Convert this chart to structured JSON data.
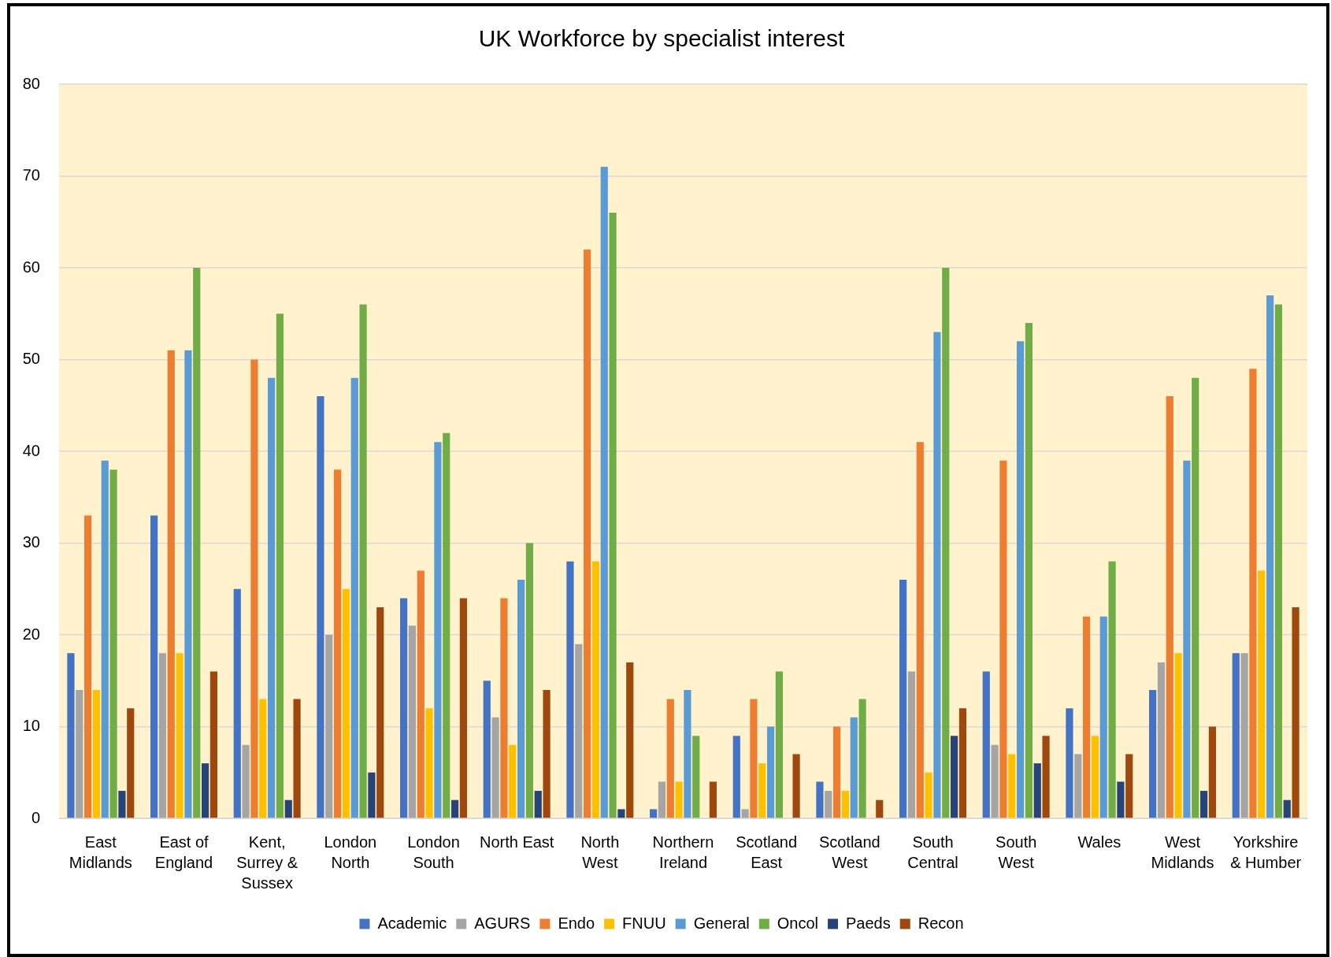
{
  "chart_data": {
    "type": "bar",
    "title": "UK Workforce by specialist interest",
    "categories": [
      "East Midlands",
      "East of England",
      "Kent, Surrey & Sussex",
      "London North",
      "London South",
      "North East",
      "North West",
      "Northern Ireland",
      "Scotland East",
      "Scotland West",
      "South Central",
      "South West",
      "Wales",
      "West Midlands",
      "Yorkshire & Humber"
    ],
    "series": [
      {
        "name": "Academic",
        "color": "#4472c4",
        "values": [
          18,
          33,
          25,
          46,
          24,
          15,
          28,
          1,
          9,
          4,
          26,
          16,
          12,
          14,
          18
        ]
      },
      {
        "name": "AGURS",
        "color": "#a5a5a5",
        "values": [
          14,
          18,
          8,
          20,
          21,
          11,
          19,
          4,
          1,
          3,
          16,
          8,
          7,
          17,
          18
        ]
      },
      {
        "name": "Endo",
        "color": "#ed7d31",
        "values": [
          33,
          51,
          50,
          38,
          27,
          24,
          62,
          13,
          13,
          10,
          41,
          39,
          22,
          46,
          49
        ]
      },
      {
        "name": "FNUU",
        "color": "#ffc000",
        "values": [
          14,
          18,
          13,
          25,
          12,
          8,
          28,
          4,
          6,
          3,
          5,
          7,
          9,
          18,
          27
        ]
      },
      {
        "name": "General",
        "color": "#5b9bd5",
        "values": [
          39,
          51,
          48,
          48,
          41,
          26,
          71,
          14,
          10,
          11,
          53,
          52,
          22,
          39,
          57
        ]
      },
      {
        "name": "Oncol",
        "color": "#70ad47",
        "values": [
          38,
          60,
          55,
          56,
          42,
          30,
          66,
          9,
          16,
          13,
          60,
          54,
          28,
          48,
          56
        ]
      },
      {
        "name": "Paeds",
        "color": "#264478",
        "values": [
          3,
          6,
          2,
          5,
          2,
          3,
          1,
          0,
          0,
          0,
          9,
          6,
          4,
          3,
          2
        ]
      },
      {
        "name": "Recon",
        "color": "#9e480e",
        "values": [
          12,
          16,
          13,
          23,
          24,
          14,
          17,
          4,
          7,
          2,
          12,
          9,
          7,
          10,
          23
        ]
      }
    ],
    "ylim": [
      0,
      80
    ],
    "yticks": [
      0,
      10,
      20,
      30,
      40,
      50,
      60,
      70,
      80
    ],
    "grid": "y",
    "legend": "bottom"
  }
}
